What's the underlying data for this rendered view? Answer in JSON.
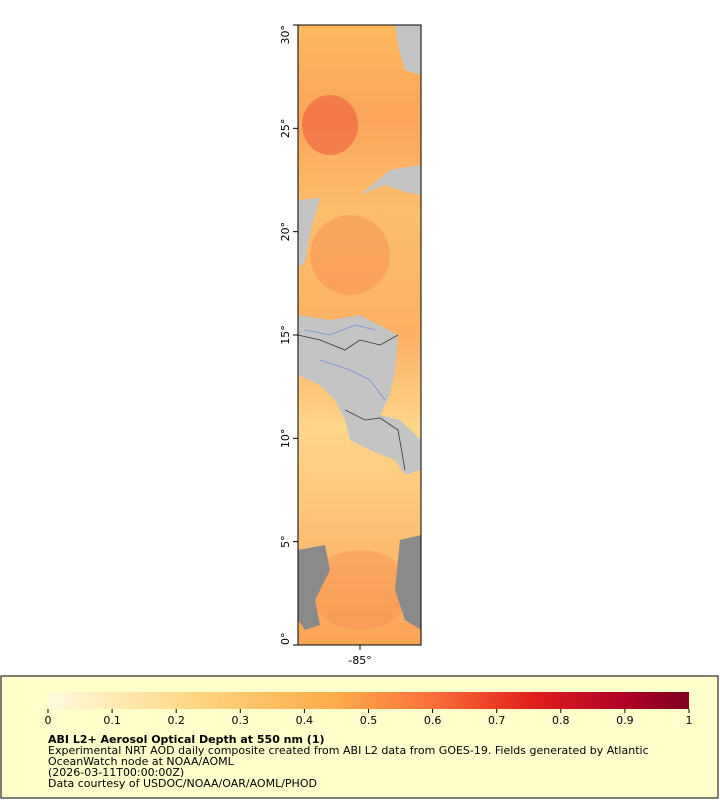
{
  "map": {
    "lat_labels": [
      "0°",
      "5°",
      "10°",
      "15°",
      "20°",
      "25°",
      "30°"
    ],
    "lon_labels": [
      "-85°"
    ]
  },
  "colorbar": {
    "ticks": [
      0,
      0.1,
      0.2,
      0.3,
      0.4,
      0.5,
      0.6,
      0.7,
      0.8,
      0.9,
      1
    ]
  },
  "legend": {
    "title": "ABI L2+ Aerosol Optical Depth at 550 nm (1)",
    "lines": [
      "Experimental NRT AOD daily composite created from ABI L2 data from GOES-19. Fields generated by Atlantic",
      "OceanWatch node at NOAA/AOML",
      "(2026-03-11T00:00:00Z)",
      "Data courtesy of USDOC/NOAA/OAR/AOML/PHOD"
    ]
  }
}
